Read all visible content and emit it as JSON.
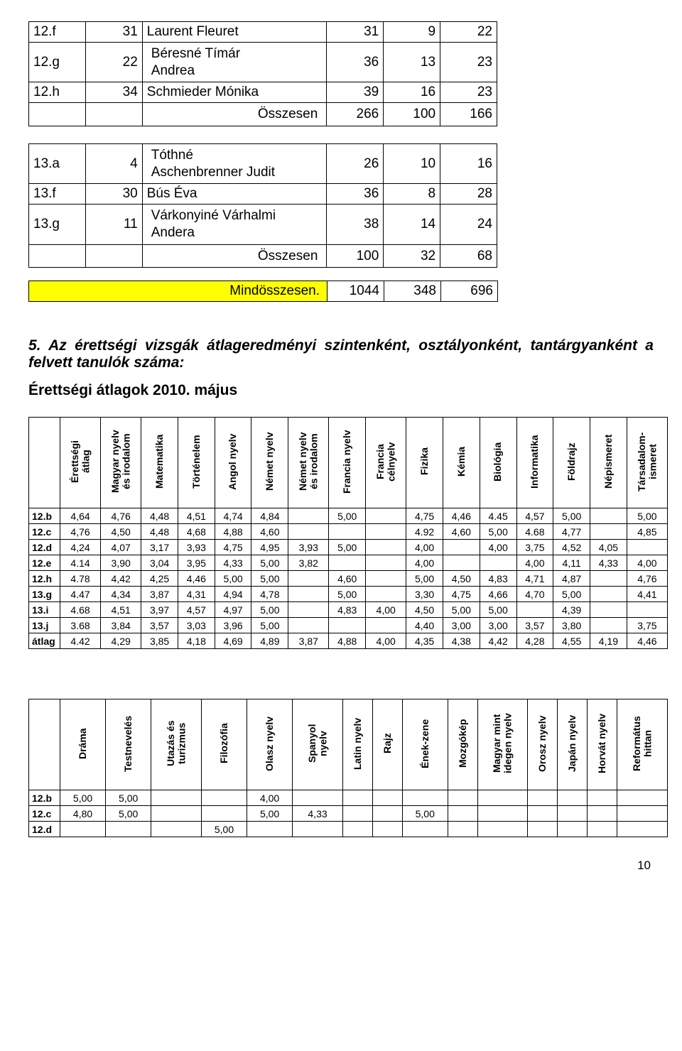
{
  "table1": {
    "rows": [
      {
        "cls": "12.f",
        "n": "31",
        "name": "Laurent Fleuret",
        "a": "31",
        "b": "9",
        "c": "22"
      },
      {
        "cls": "12.g",
        "n": "22",
        "name": "Béresné Tímár\nAndrea",
        "a": "36",
        "b": "13",
        "c": "23"
      },
      {
        "cls": "12.h",
        "n": "34",
        "name": "Schmieder Mónika",
        "a": "39",
        "b": "16",
        "c": "23"
      }
    ],
    "total_label": "Összesen",
    "total": {
      "a": "266",
      "b": "100",
      "c": "166"
    }
  },
  "table2": {
    "rows": [
      {
        "cls": "13.a",
        "n": "4",
        "name": "Tóthné\nAschenbrenner Judit",
        "a": "26",
        "b": "10",
        "c": "16"
      },
      {
        "cls": "13.f",
        "n": "30",
        "name": "Bús Éva",
        "a": "36",
        "b": "8",
        "c": "28"
      },
      {
        "cls": "13.g",
        "n": "11",
        "name": "Várkonyiné Várhalmi\nAndera",
        "a": "38",
        "b": "14",
        "c": "24"
      }
    ],
    "total_label": "Összesen",
    "total": {
      "a": "100",
      "b": "32",
      "c": "68"
    },
    "grand_label": "Mindösszesen.",
    "grand": {
      "a": "1044",
      "b": "348",
      "c": "696"
    }
  },
  "section": {
    "title": "5. Az érettségi vizsgák átlageredményi szintenként, osztályonként, tantárgyanként a felvett tanulók száma:",
    "sub": "Érettségi átlagok 2010. május"
  },
  "grades": {
    "headers": [
      "",
      "Érettségi\nátlag",
      "Magyar nyelv\nés irodalom",
      "Matematika",
      "Történelem",
      "Angol nyelv",
      "Német nyelv",
      "Német nyelv\nés irodalom",
      "Francia nyelv",
      "Francia\ncélnyelv",
      "Fizika",
      "Kémia",
      "Biológia",
      "Informatika",
      "Földrajz",
      "Népismeret",
      "Társadalom-\nismeret"
    ],
    "rows": [
      {
        "l": "12.b",
        "v": [
          "4,64",
          "4,76",
          "4,48",
          "4,51",
          "4,74",
          "4,84",
          "",
          "5,00",
          "",
          "4,75",
          "4,46",
          "4.45",
          "4,57",
          "5,00",
          "",
          "5,00"
        ]
      },
      {
        "l": "12.c",
        "v": [
          "4,76",
          "4,50",
          "4,48",
          "4,68",
          "4,88",
          "4,60",
          "",
          "",
          "",
          "4.92",
          "4,60",
          "5,00",
          "4.68",
          "4,77",
          "",
          "4,85"
        ]
      },
      {
        "l": "12.d",
        "v": [
          "4,24",
          "4,07",
          "3,17",
          "3,93",
          "4,75",
          "4,95",
          "3,93",
          "5,00",
          "",
          "4,00",
          "",
          "4,00",
          "3,75",
          "4,52",
          "4,05",
          ""
        ]
      },
      {
        "l": "12.e",
        "v": [
          "4.14",
          "3,90",
          "3,04",
          "3,95",
          "4,33",
          "5,00",
          "3,82",
          "",
          "",
          "4,00",
          "",
          "",
          "4,00",
          "4,11",
          "4,33",
          "4,00"
        ]
      },
      {
        "l": "12.h",
        "v": [
          "4.78",
          "4,42",
          "4,25",
          "4,46",
          "5,00",
          "5,00",
          "",
          "4,60",
          "",
          "5,00",
          "4,50",
          "4,83",
          "4,71",
          "4,87",
          "",
          "4,76"
        ]
      },
      {
        "l": "13.g",
        "v": [
          "4.47",
          "4,34",
          "3,87",
          "4,31",
          "4,94",
          "4,78",
          "",
          "5,00",
          "",
          "3,30",
          "4,75",
          "4,66",
          "4,70",
          "5,00",
          "",
          "4,41"
        ]
      },
      {
        "l": "13.i",
        "v": [
          "4.68",
          "4,51",
          "3,97",
          "4,57",
          "4,97",
          "5,00",
          "",
          "4,83",
          "4,00",
          "4,50",
          "5,00",
          "5,00",
          "",
          "4,39",
          "",
          ""
        ]
      },
      {
        "l": "13.j",
        "v": [
          "3.68",
          "3,84",
          "3,57",
          "3,03",
          "3,96",
          "5,00",
          "",
          "",
          "",
          "4,40",
          "3,00",
          "3,00",
          "3,57",
          "3,80",
          "",
          "3,75"
        ]
      },
      {
        "l": "átlag",
        "v": [
          "4.42",
          "4,29",
          "3,85",
          "4,18",
          "4,69",
          "4,89",
          "3,87",
          "4,88",
          "4,00",
          "4,35",
          "4,38",
          "4,42",
          "4,28",
          "4,55",
          "4,19",
          "4,46"
        ]
      }
    ]
  },
  "grades2": {
    "headers": [
      "",
      "Dráma",
      "Testnevelés",
      "Utazás és\nturizmus",
      "Filozófia",
      "Olasz nyelv",
      "Spanyol\nnyelv",
      "Latin nyelv",
      "Rajz",
      "Ének-zene",
      "Mozgókép",
      "Magyar mint\nidegen nyelv",
      "Orosz nyelv",
      "Japán nyelv",
      "Horvát nyelv",
      "Református\nhittan"
    ],
    "rows": [
      {
        "l": "12.b",
        "v": [
          "5,00",
          "5,00",
          "",
          "",
          "4,00",
          "",
          "",
          "",
          "",
          "",
          "",
          "",
          "",
          "",
          ""
        ]
      },
      {
        "l": "12.c",
        "v": [
          "4,80",
          "5,00",
          "",
          "",
          "5,00",
          "4,33",
          "",
          "",
          "5,00",
          "",
          "",
          "",
          "",
          "",
          ""
        ]
      },
      {
        "l": "12.d",
        "v": [
          "",
          "",
          "",
          "5,00",
          "",
          "",
          "",
          "",
          "",
          "",
          "",
          "",
          "",
          "",
          ""
        ]
      }
    ]
  },
  "page_number": "10",
  "colors": {
    "highlight": "#ffff00",
    "border": "#000000",
    "text": "#000000",
    "bg": "#ffffff"
  }
}
